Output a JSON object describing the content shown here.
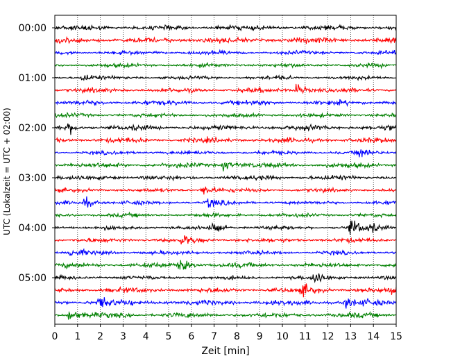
{
  "chart_data": {
    "type": "line",
    "xlabel": "Zeit  [min]",
    "ylabel": "UTC (Lokalzeit = UTC + 02:00)",
    "xlim": [
      0,
      15
    ],
    "x_ticks": [
      "0",
      "1",
      "2",
      "3",
      "4",
      "5",
      "6",
      "7",
      "8",
      "9",
      "10",
      "11",
      "12",
      "13",
      "14",
      "15"
    ],
    "y_tick_labels": [
      "00:00",
      "01:00",
      "02:00",
      "03:00",
      "04:00",
      "05:00"
    ],
    "y_tick_rows": [
      0,
      4,
      8,
      12,
      16,
      20
    ],
    "traces_count": 24,
    "minutes_per_trace": 15,
    "grid": "vertical dotted at each minute",
    "colors": [
      "#000000",
      "#ff0000",
      "#0000ff",
      "#008000"
    ],
    "events": [
      {
        "trace": 4,
        "minute": 1.2,
        "strength": 0.7
      },
      {
        "trace": 5,
        "minute": 10.6,
        "strength": 1.6
      },
      {
        "trace": 8,
        "minute": 0.6,
        "strength": 1.0
      },
      {
        "trace": 10,
        "minute": 13.3,
        "strength": 1.1
      },
      {
        "trace": 11,
        "minute": 7.4,
        "strength": 1.2
      },
      {
        "trace": 13,
        "minute": 6.5,
        "strength": 1.5
      },
      {
        "trace": 14,
        "minute": 1.3,
        "strength": 1.2
      },
      {
        "trace": 14,
        "minute": 6.7,
        "strength": 1.2
      },
      {
        "trace": 16,
        "minute": 6.9,
        "strength": 1.1
      },
      {
        "trace": 16,
        "minute": 13.0,
        "strength": 2.0
      },
      {
        "trace": 16,
        "minute": 13.8,
        "strength": 1.0
      },
      {
        "trace": 17,
        "minute": 5.6,
        "strength": 1.0
      },
      {
        "trace": 18,
        "minute": 0.7,
        "strength": 1.1
      },
      {
        "trace": 19,
        "minute": 5.5,
        "strength": 1.5
      },
      {
        "trace": 20,
        "minute": 11.4,
        "strength": 1.7
      },
      {
        "trace": 21,
        "minute": 10.9,
        "strength": 1.3
      },
      {
        "trace": 21,
        "minute": 14.8,
        "strength": 1.1
      },
      {
        "trace": 22,
        "minute": 1.9,
        "strength": 1.1
      },
      {
        "trace": 22,
        "minute": 12.8,
        "strength": 1.1
      },
      {
        "trace": 23,
        "minute": 0.6,
        "strength": 1.3
      }
    ]
  }
}
